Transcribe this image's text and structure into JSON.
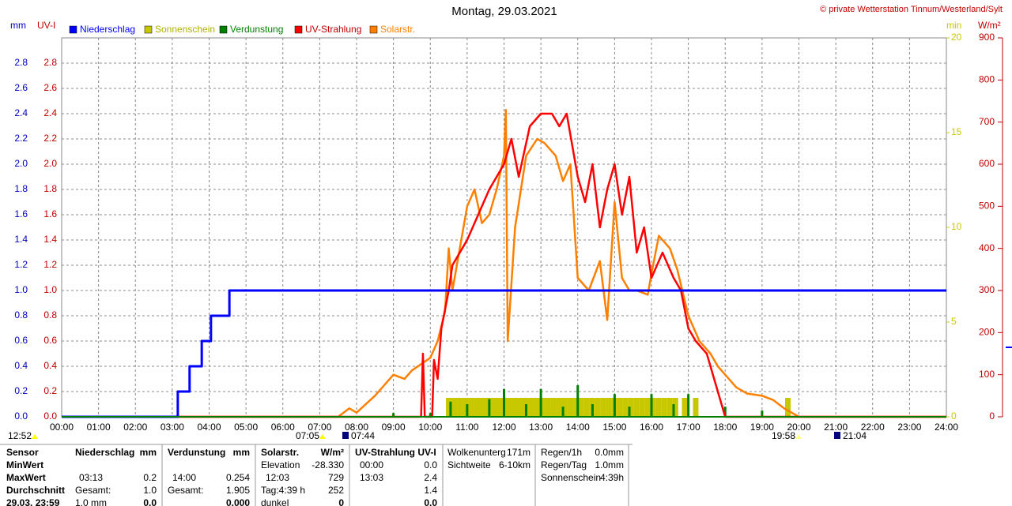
{
  "chart_data": {
    "type": "line",
    "title": "Montag, 29.03.2021",
    "source": "© private Wetterstation Tinnum/Westerland/Sylt",
    "y_label": "mm",
    "y_label_uv": "UV-I",
    "y2_label": "min",
    "y3_label": "W/m²",
    "xlim": [
      0,
      24
    ],
    "xticks": [
      {
        "value": 0,
        "label": "00:00"
      },
      {
        "value": 1,
        "label": "01:00"
      },
      {
        "value": 2,
        "label": "02:00"
      },
      {
        "value": 3,
        "label": "03:00"
      },
      {
        "value": 4,
        "label": "04:00"
      },
      {
        "value": 5,
        "label": "05:00"
      },
      {
        "value": 6,
        "label": "06:00"
      },
      {
        "value": 7,
        "label": "07:00"
      },
      {
        "value": 8,
        "label": "08:00"
      },
      {
        "value": 9,
        "label": "09:00"
      },
      {
        "value": 10,
        "label": "10:00"
      },
      {
        "value": 11,
        "label": "11:00"
      },
      {
        "value": 12,
        "label": "12:00"
      },
      {
        "value": 13,
        "label": "13:00"
      },
      {
        "value": 14,
        "label": "14:00"
      },
      {
        "value": 15,
        "label": "15:00"
      },
      {
        "value": 16,
        "label": "16:00"
      },
      {
        "value": 17,
        "label": "17:00"
      },
      {
        "value": 18,
        "label": "18:00"
      },
      {
        "value": 19,
        "label": "19:00"
      },
      {
        "value": 20,
        "label": "20:00"
      },
      {
        "value": 21,
        "label": "21:00"
      },
      {
        "value": 22,
        "label": "22:00"
      },
      {
        "value": 23,
        "label": "23:00"
      },
      {
        "value": 24,
        "label": "24:00"
      }
    ],
    "ylim": [
      0,
      3.0
    ],
    "yticks": [
      {
        "value": 0,
        "label": "0.0"
      },
      {
        "value": 0.2,
        "label": "0.2"
      },
      {
        "value": 0.4,
        "label": "0.4"
      },
      {
        "value": 0.6,
        "label": "0.6"
      },
      {
        "value": 0.8,
        "label": "0.8"
      },
      {
        "value": 1.0,
        "label": "1.0"
      },
      {
        "value": 1.2,
        "label": "1.2"
      },
      {
        "value": 1.4,
        "label": "1.4"
      },
      {
        "value": 1.6,
        "label": "1.6"
      },
      {
        "value": 1.8,
        "label": "1.8"
      },
      {
        "value": 2.0,
        "label": "2.0"
      },
      {
        "value": 2.2,
        "label": "2.2"
      },
      {
        "value": 2.4,
        "label": "2.4"
      },
      {
        "value": 2.6,
        "label": "2.6"
      },
      {
        "value": 2.8,
        "label": "2.8"
      }
    ],
    "y2lim": [
      0,
      20
    ],
    "y2ticks": [
      0,
      5,
      10,
      15,
      20
    ],
    "y3lim": [
      0,
      900
    ],
    "y3ticks": [
      0,
      100,
      200,
      300,
      400,
      500,
      600,
      700,
      800,
      900
    ],
    "grid": true,
    "series": [
      {
        "name": "Niederschlag",
        "color": "#0000ff",
        "kind": "line",
        "axis": "y",
        "x": [
          0,
          3.15,
          3.15,
          3.47,
          3.47,
          3.8,
          3.8,
          4.05,
          4.05,
          4.55,
          4.55,
          24
        ],
        "values": [
          0,
          0,
          0.2,
          0.2,
          0.4,
          0.4,
          0.6,
          0.6,
          0.8,
          0.8,
          1.0,
          1.0
        ]
      },
      {
        "name": "Sonnenschein",
        "color": "#c8c800",
        "kind": "bar",
        "axis": "y2",
        "x": [
          10.5,
          10.65,
          10.8,
          10.95,
          11.1,
          11.25,
          11.4,
          11.55,
          11.7,
          11.85,
          12.0,
          12.15,
          12.3,
          12.45,
          12.6,
          12.75,
          12.9,
          13.05,
          13.2,
          13.35,
          13.5,
          13.65,
          13.8,
          13.95,
          14.1,
          14.25,
          14.4,
          14.55,
          14.7,
          14.85,
          15.0,
          15.15,
          15.3,
          15.45,
          15.6,
          15.75,
          15.9,
          16.05,
          16.2,
          16.35,
          16.5,
          16.65,
          16.9,
          17.2,
          19.7
        ],
        "values": [
          1,
          1,
          1,
          1,
          1,
          1,
          1,
          1,
          1,
          1,
          1,
          1,
          1,
          1,
          1,
          1,
          1,
          1,
          1,
          1,
          1,
          1,
          1,
          1,
          1,
          1,
          1,
          1,
          1,
          1,
          1,
          1,
          1,
          1,
          1,
          1,
          1,
          1,
          1,
          1,
          1,
          1,
          1,
          1,
          1
        ]
      },
      {
        "name": "Verdunstung",
        "color": "#008000",
        "kind": "spike",
        "axis": "y",
        "x": [
          9,
          10,
          10.55,
          11,
          11.6,
          12,
          12.6,
          13,
          13.6,
          14,
          14.4,
          15,
          15.4,
          16,
          16.6,
          17,
          18,
          19
        ],
        "values": [
          0.03,
          0.03,
          0.12,
          0.1,
          0.14,
          0.22,
          0.1,
          0.22,
          0.08,
          0.25,
          0.1,
          0.18,
          0.08,
          0.18,
          0.1,
          0.18,
          0.08,
          0.05
        ]
      },
      {
        "name": "UV-Strahlung",
        "color": "#ff0000",
        "kind": "line",
        "axis": "y",
        "x": [
          0,
          9.75,
          9.8,
          9.85,
          10.05,
          10.1,
          10.2,
          10.3,
          10.5,
          10.6,
          11.0,
          11.3,
          11.6,
          12.0,
          12.2,
          12.4,
          12.7,
          13.0,
          13.3,
          13.5,
          13.7,
          14.0,
          14.2,
          14.4,
          14.6,
          14.8,
          15.0,
          15.2,
          15.4,
          15.6,
          15.8,
          16.0,
          16.3,
          16.6,
          16.8,
          17.0,
          17.2,
          17.5,
          17.7,
          17.8,
          18.0,
          24
        ],
        "values": [
          0,
          0,
          0.5,
          0,
          0,
          0.45,
          0.3,
          0.7,
          1.0,
          1.2,
          1.4,
          1.6,
          1.8,
          2.0,
          2.2,
          1.9,
          2.3,
          2.4,
          2.4,
          2.3,
          2.4,
          1.9,
          1.7,
          2.0,
          1.5,
          1.8,
          2.0,
          1.6,
          1.9,
          1.3,
          1.5,
          1.1,
          1.3,
          1.1,
          1.0,
          0.7,
          0.6,
          0.5,
          0.3,
          0.2,
          0,
          0
        ]
      },
      {
        "name": "Solarstr.",
        "color": "#ff8000",
        "kind": "line",
        "axis": "y3",
        "x": [
          0,
          7.5,
          7.8,
          8.0,
          8.5,
          9.0,
          9.3,
          9.5,
          10.0,
          10.2,
          10.4,
          10.5,
          10.6,
          10.8,
          11.0,
          11.2,
          11.4,
          11.6,
          11.8,
          12.0,
          12.05,
          12.1,
          12.3,
          12.6,
          12.9,
          13.1,
          13.4,
          13.6,
          13.8,
          14.0,
          14.3,
          14.6,
          14.8,
          15.0,
          15.2,
          15.4,
          15.6,
          15.9,
          16.0,
          16.2,
          16.5,
          16.7,
          17.0,
          17.3,
          17.6,
          17.8,
          18.0,
          18.3,
          18.6,
          19.0,
          19.3,
          19.6,
          20.0,
          24
        ],
        "values": [
          0,
          0,
          20,
          10,
          50,
          100,
          90,
          110,
          140,
          180,
          250,
          400,
          300,
          400,
          500,
          540,
          460,
          480,
          540,
          620,
          729,
          180,
          450,
          620,
          660,
          650,
          620,
          560,
          600,
          330,
          300,
          370,
          230,
          510,
          330,
          300,
          300,
          290,
          340,
          430,
          400,
          350,
          240,
          180,
          150,
          120,
          100,
          70,
          55,
          50,
          40,
          20,
          0,
          0
        ]
      }
    ],
    "annotations": [
      "12:52",
      "07:05",
      "07:44",
      "19:58",
      "21:04"
    ]
  },
  "stats": {
    "rows": [
      "Sensor",
      "MinWert",
      "MaxWert",
      "Durchschnitt",
      "29.03. 23:59"
    ],
    "niederschlag": {
      "title": "Niederschlag",
      "unit": "mm",
      "max_time": "03:13",
      "max": "0.2",
      "total_label": "Gesamt:",
      "total": "1.0",
      "current_label": "1.0 mm",
      "current": "0.0"
    },
    "verdunstung": {
      "title": "Verdunstung",
      "unit": "mm",
      "max_time": "14:00",
      "max": "0.254",
      "total_label": "Gesamt:",
      "total": "1.905",
      "current": "0.000"
    },
    "solar": {
      "title": "Solarstr.",
      "unit": "W/m²",
      "elevation_label": "Elevation",
      "elevation": "-28.330",
      "max_time": "12:03",
      "max": "729",
      "day_label": "Tag:4:39 h",
      "avg": "252",
      "current_label": "dunkel",
      "current": "0"
    },
    "uv": {
      "title": "UV-Strahlung UV-I",
      "min_time": "00:00",
      "min": "0.0",
      "max_time": "13:03",
      "max": "2.4",
      "avg": "1.4",
      "current": "0.0"
    },
    "wolken": {
      "cloud_label": "Wolkenunterg",
      "cloud": "171m",
      "vis_label": "Sichtweite",
      "vis": "6-10km"
    },
    "regen": {
      "rain_h_label": "Regen/1h",
      "rain_h": "0.0mm",
      "rain_d_label": "Regen/Tag",
      "rain_d": "1.0mm",
      "sun_label": "Sonnenschein",
      "sun": "4:39h"
    }
  }
}
